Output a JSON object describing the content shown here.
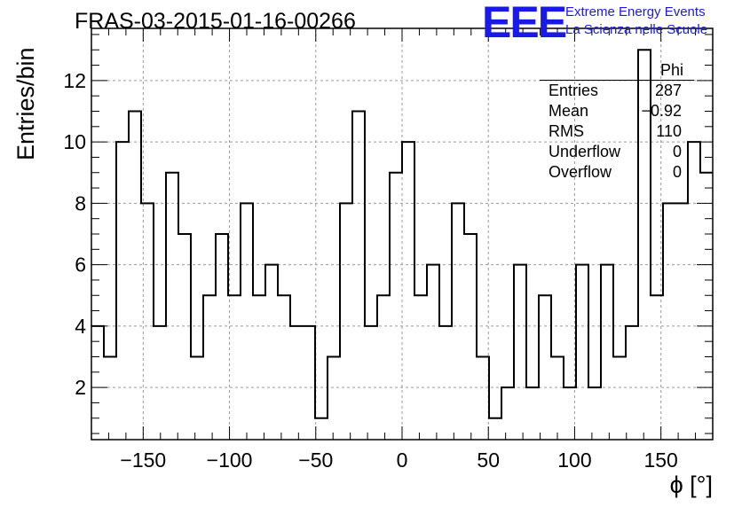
{
  "header": {
    "title": "FRAS-03-2015-01-16-00266",
    "logo_text": "EEE",
    "logo_line1": "Extreme Energy Events",
    "logo_line2": "La Scienza nelle Scuole"
  },
  "stats_box": {
    "name": "Phi",
    "rows": [
      {
        "label": "Entries",
        "value": "287"
      },
      {
        "label": "Mean",
        "value": "−0.92"
      },
      {
        "label": "RMS",
        "value": "110"
      },
      {
        "label": "Underflow",
        "value": "0"
      },
      {
        "label": "Overflow",
        "value": "0"
      }
    ]
  },
  "colors": {
    "accent": "#1a1ae6",
    "line": "#000000",
    "grid": "#9a9a9a"
  },
  "chart_data": {
    "type": "histogram",
    "title": "FRAS-03-2015-01-16-00266",
    "xlabel": "ϕ [°]",
    "ylabel": "Entries/bin",
    "xlim": [
      -180,
      180
    ],
    "ylim": [
      0.3,
      13.7
    ],
    "bin_width": 7.2,
    "bin_edges_start": -180,
    "values": [
      4,
      3,
      10,
      11,
      8,
      4,
      9,
      7,
      3,
      5,
      7,
      5,
      8,
      5,
      6,
      5,
      4,
      4,
      1,
      3,
      8,
      11,
      4,
      5,
      9,
      10,
      5,
      6,
      4,
      8,
      7,
      3,
      1,
      2,
      6,
      2,
      5,
      3,
      2,
      6,
      2,
      6,
      3,
      4,
      13,
      5,
      8,
      8,
      10,
      9
    ],
    "x_ticks": [
      -150,
      -100,
      -50,
      0,
      50,
      100,
      150
    ],
    "x_tick_labels": [
      "−150",
      "−100",
      "−50",
      "0",
      "50",
      "100",
      "150"
    ],
    "y_ticks": [
      2,
      4,
      6,
      8,
      10,
      12
    ],
    "y_tick_labels": [
      "2",
      "4",
      "6",
      "8",
      "10",
      "12"
    ],
    "grid": true,
    "stats_box_position": "top-right"
  }
}
